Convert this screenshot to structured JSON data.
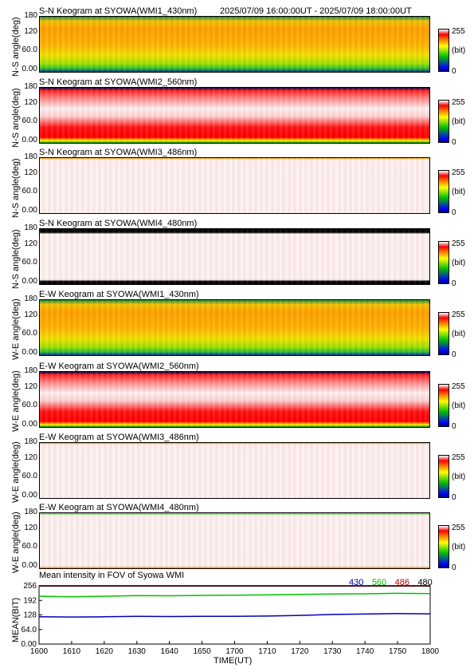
{
  "header": {
    "time_range": "2025/07/09 16:00:00UT - 2025/07/09 18:00:00UT"
  },
  "colorbar": {
    "max_label": "255",
    "unit_label": "(bit)",
    "min_label": "0"
  },
  "ns_ylabel": "N-S angle(deg)",
  "we_ylabel": "W-E angle(deg)",
  "keogram_ticks": [
    "180",
    "120",
    "60.0",
    "0.00"
  ],
  "keograms": [
    {
      "title": "S-N Keogram at SYOWA(WMI1_430nm)",
      "palette": "green-orange"
    },
    {
      "title": "S-N Keogram at SYOWA(WMI2_560nm)",
      "palette": "red-white"
    },
    {
      "title": "S-N Keogram at SYOWA(WMI3_486nm)",
      "palette": "pale"
    },
    {
      "title": "S-N Keogram at SYOWA(WMI4_480nm)",
      "palette": "pale-dark"
    },
    {
      "title": "E-W Keogram at SYOWA(WMI1_430nm)",
      "palette": "green-orange"
    },
    {
      "title": "E-W Keogram at SYOWA(WMI2_560nm)",
      "palette": "red-white"
    },
    {
      "title": "E-W Keogram at SYOWA(WMI3_486nm)",
      "palette": "pale"
    },
    {
      "title": "E-W Keogram at SYOWA(WMI4_480nm)",
      "palette": "pale-green"
    }
  ],
  "chart_data": {
    "type": "line",
    "title": "Mean intensity in FOV of Syowa WMI",
    "xlabel": "TIME(UT)",
    "ylabel": "MEAN(BIT)",
    "xlim": [
      1600,
      1800
    ],
    "ylim": [
      0,
      256
    ],
    "x_tick_labels": [
      "1600",
      "1610",
      "1620",
      "1630",
      "1640",
      "1650",
      "1700",
      "1710",
      "1720",
      "1730",
      "1740",
      "1750",
      "1800"
    ],
    "y_tick_labels": [
      "256",
      "192",
      "128",
      "64.0",
      "0.00"
    ],
    "legend": [
      {
        "name": "430",
        "color": "#0000c0"
      },
      {
        "name": "560",
        "color": "#00c000"
      },
      {
        "name": "486",
        "color": "#c00000"
      },
      {
        "name": "480",
        "color": "#000000"
      }
    ],
    "x_minutes": [
      0,
      10,
      20,
      30,
      40,
      50,
      60,
      70,
      80,
      90,
      100,
      110,
      120
    ],
    "series": [
      {
        "name": "430",
        "color": "#0000c0",
        "values": [
          120,
          119,
          120,
          122,
          121,
          122,
          122,
          123,
          126,
          130,
          132,
          134,
          133
        ]
      },
      {
        "name": "560",
        "color": "#00c000",
        "values": [
          210,
          208,
          210,
          213,
          212,
          214,
          215,
          216,
          218,
          220,
          221,
          223,
          222
        ]
      },
      {
        "name": "486",
        "color": "#c00000",
        "values": [
          255,
          255,
          255,
          255,
          255,
          255,
          255,
          255,
          255,
          255,
          255,
          255,
          255
        ]
      },
      {
        "name": "480",
        "color": "#000000",
        "values": [
          256,
          256,
          256,
          256,
          256,
          256,
          256,
          256,
          256,
          256,
          256,
          256,
          256
        ]
      }
    ]
  }
}
